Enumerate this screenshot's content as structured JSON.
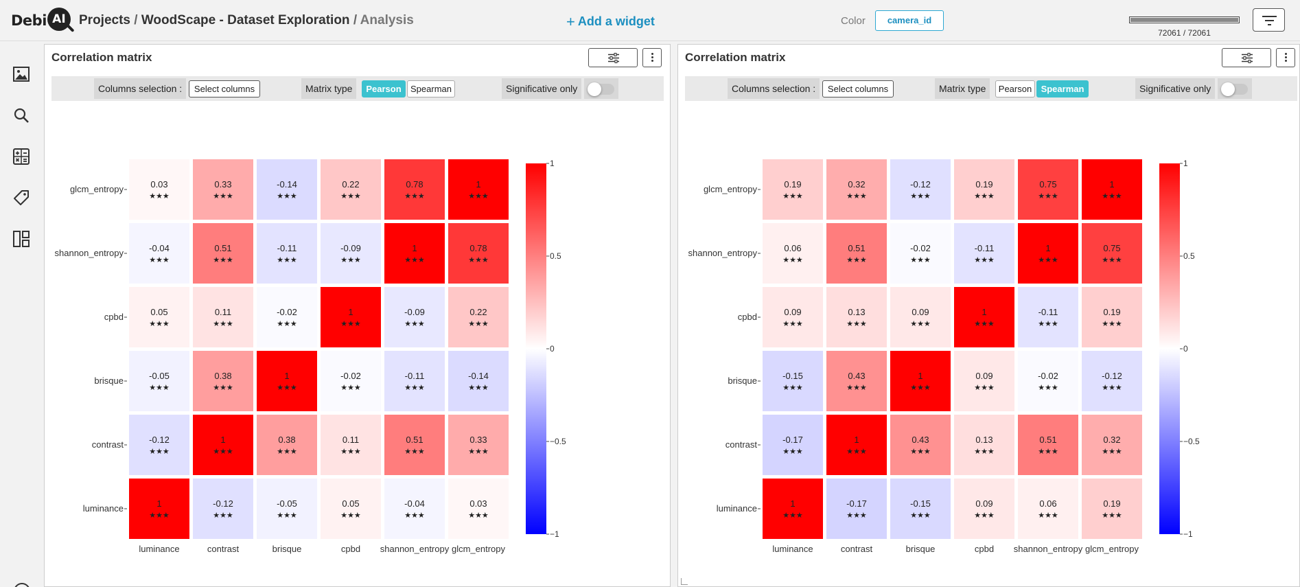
{
  "header": {
    "logo_text": "Debi",
    "logo_badge": "AI",
    "breadcrumb": [
      "Projects",
      "WoodScape - Dataset Exploration",
      "Analysis"
    ],
    "add_widget_label": "Add a widget",
    "color_label": "Color",
    "color_value": "camera_id",
    "progress_text": "72061 / 72061",
    "progress_fraction": 1.0
  },
  "sidebar": {
    "items": [
      {
        "icon": "image-icon"
      },
      {
        "icon": "search-icon"
      },
      {
        "icon": "calculator-icon"
      },
      {
        "icon": "tag-icon"
      },
      {
        "icon": "layout-icon"
      }
    ]
  },
  "widgets": [
    {
      "title": "Correlation matrix",
      "columns_label": "Columns selection :",
      "select_button": "Select columns",
      "matrix_type_label": "Matrix type",
      "pearson_label": "Pearson",
      "spearman_label": "Spearman",
      "active_type": "Pearson",
      "significative_label": "Significative only",
      "significative_on": false
    },
    {
      "title": "Correlation matrix",
      "columns_label": "Columns selection :",
      "select_button": "Select columns",
      "matrix_type_label": "Matrix type",
      "pearson_label": "Pearson",
      "spearman_label": "Spearman",
      "active_type": "Spearman",
      "significative_label": "Significative only",
      "significative_on": false
    }
  ],
  "chart_data": [
    {
      "type": "heatmap",
      "method": "Pearson",
      "x": [
        "luminance",
        "contrast",
        "brisque",
        "cpbd",
        "shannon_entropy",
        "glcm_entropy"
      ],
      "y": [
        "glcm_entropy",
        "shannon_entropy",
        "cpbd",
        "brisque",
        "contrast",
        "luminance"
      ],
      "values": [
        [
          0.03,
          0.33,
          -0.14,
          0.22,
          0.78,
          1
        ],
        [
          -0.04,
          0.51,
          -0.11,
          -0.09,
          1,
          0.78
        ],
        [
          0.05,
          0.11,
          -0.02,
          1,
          -0.09,
          0.22
        ],
        [
          -0.05,
          0.38,
          1,
          -0.02,
          -0.11,
          -0.14
        ],
        [
          -0.12,
          1,
          0.38,
          0.11,
          0.51,
          0.33
        ],
        [
          1,
          -0.12,
          -0.05,
          0.05,
          -0.04,
          0.03
        ]
      ],
      "significance": "★★★",
      "colorscale": {
        "min": -1,
        "max": 1,
        "ticks": [
          1,
          0.5,
          0,
          -0.5,
          -1
        ],
        "tick_labels": [
          "1",
          "0.5",
          "0",
          "−0.5",
          "−1"
        ],
        "low": "#0000ff",
        "mid": "#ffffff",
        "high": "#ff0000"
      }
    },
    {
      "type": "heatmap",
      "method": "Spearman",
      "x": [
        "luminance",
        "contrast",
        "brisque",
        "cpbd",
        "shannon_entropy",
        "glcm_entropy"
      ],
      "y": [
        "glcm_entropy",
        "shannon_entropy",
        "cpbd",
        "brisque",
        "contrast",
        "luminance"
      ],
      "values": [
        [
          0.19,
          0.32,
          -0.12,
          0.19,
          0.75,
          1
        ],
        [
          0.06,
          0.51,
          -0.02,
          -0.11,
          1,
          0.75
        ],
        [
          0.09,
          0.13,
          0.09,
          1,
          -0.11,
          0.19
        ],
        [
          -0.15,
          0.43,
          1,
          0.09,
          -0.02,
          -0.12
        ],
        [
          -0.17,
          1,
          0.43,
          0.13,
          0.51,
          0.32
        ],
        [
          1,
          -0.17,
          -0.15,
          0.09,
          0.06,
          0.19
        ]
      ],
      "significance": "★★★",
      "colorscale": {
        "min": -1,
        "max": 1,
        "ticks": [
          1,
          0.5,
          0,
          -0.5,
          -1
        ],
        "tick_labels": [
          "1",
          "0.5",
          "0",
          "−0.5",
          "−1"
        ],
        "low": "#0000ff",
        "mid": "#ffffff",
        "high": "#ff0000"
      }
    }
  ]
}
